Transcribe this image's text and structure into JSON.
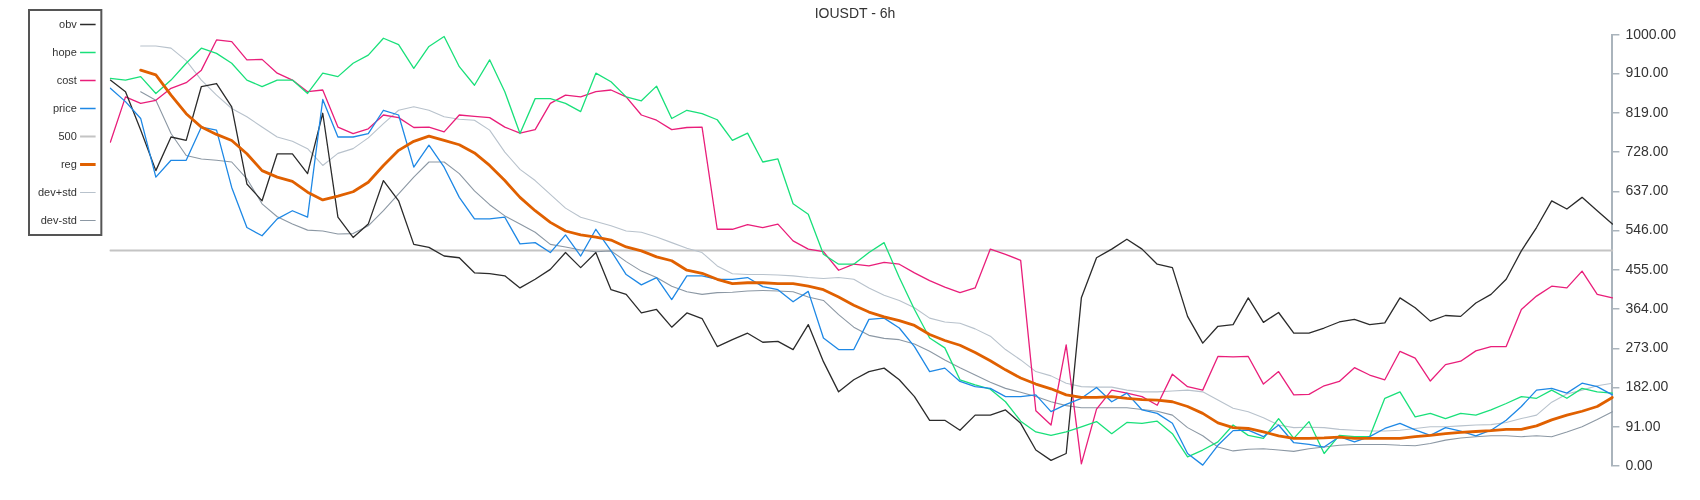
{
  "chart_data": {
    "type": "line",
    "title": "IOUSDT - 6h",
    "categories": [
      null,
      null,
      null,
      null,
      null,
      null,
      null,
      null,
      null,
      null,
      null,
      null,
      null,
      null,
      null,
      null,
      null,
      null,
      null,
      null,
      null,
      null,
      null,
      null,
      null,
      null,
      null,
      null,
      null,
      null,
      null,
      null,
      null,
      null,
      null,
      null,
      null,
      null,
      null,
      null,
      null,
      null,
      null,
      null,
      null,
      null,
      null,
      null,
      null,
      null,
      null,
      null,
      null,
      null,
      null,
      null,
      null,
      null,
      null,
      null,
      null,
      null,
      null,
      null,
      null,
      null,
      null,
      null,
      null,
      null,
      null,
      null,
      null,
      null,
      null,
      null,
      null,
      null,
      null,
      null,
      null,
      null,
      null,
      null,
      null,
      null,
      null,
      null,
      null,
      null,
      null,
      null,
      null,
      null,
      null,
      null,
      null,
      null,
      null,
      null
    ],
    "series": [
      {
        "name": "obv",
        "color": "#2b2b2b",
        "values": [
          895,
          868,
          779,
          685,
          763,
          755,
          880,
          887,
          833,
          654,
          615,
          724,
          724,
          678,
          818,
          577,
          530,
          561,
          662,
          615,
          514,
          507,
          487,
          483,
          448,
          446,
          441,
          413,
          433,
          456,
          495,
          460,
          495,
          409,
          398,
          355,
          363,
          322,
          355,
          342,
          277,
          293,
          308,
          287,
          289,
          270,
          328,
          242,
          172,
          200,
          219,
          227,
          200,
          161,
          106,
          106,
          83,
          118,
          118,
          130,
          99,
          37,
          13,
          29,
          390,
          483,
          503,
          526,
          503,
          468,
          460,
          347,
          285,
          324,
          328,
          390,
          333,
          356,
          308,
          308,
          320,
          334,
          340,
          328,
          332,
          390,
          367,
          336,
          349,
          347,
          378,
          398,
          433,
          499,
          553,
          615,
          596,
          623,
          592,
          561
        ]
      },
      {
        "name": "hope",
        "color": "#19e07a",
        "values": [
          899,
          895,
          903,
          864,
          895,
          934,
          969,
          957,
          934,
          895,
          880,
          895,
          895,
          864,
          911,
          903,
          934,
          953,
          992,
          977,
          922,
          973,
          996,
          926,
          883,
          942,
          868,
          771,
          852,
          852,
          841,
          822,
          911,
          891,
          856,
          847,
          881,
          806,
          825,
          817,
          803,
          755,
          772,
          705,
          712,
          608,
          584,
          491,
          468,
          468,
          495,
          518,
          437,
          363,
          297,
          274,
          200,
          188,
          178,
          149,
          104,
          79,
          71,
          79,
          91,
          103,
          75,
          101,
          99,
          104,
          75,
          21,
          37,
          56,
          95,
          71,
          64,
          110,
          64,
          103,
          29,
          71,
          68,
          68,
          157,
          172,
          114,
          122,
          110,
          122,
          118,
          130,
          145,
          161,
          157,
          176,
          157,
          180,
          172,
          169
        ]
      },
      {
        "name": "cost",
        "color": "#e91e7a",
        "values": [
          751,
          856,
          841,
          848,
          876,
          889,
          918,
          988,
          984,
          942,
          943,
          911,
          895,
          868,
          872,
          786,
          771,
          782,
          814,
          808,
          785,
          786,
          775,
          814,
          811,
          808,
          786,
          772,
          780,
          841,
          860,
          856,
          868,
          872,
          856,
          814,
          802,
          780,
          785,
          786,
          549,
          549,
          560,
          553,
          561,
          522,
          503,
          497,
          454,
          468,
          464,
          472,
          468,
          448,
          430,
          415,
          402,
          413,
          503,
          491,
          477,
          128,
          95,
          281,
          5,
          132,
          176,
          169,
          161,
          141,
          213,
          184,
          176,
          254,
          253,
          254,
          190,
          219,
          165,
          166,
          186,
          196,
          228,
          211,
          200,
          266,
          250,
          197,
          235,
          243,
          267,
          277,
          277,
          363,
          394,
          417,
          413,
          452,
          398,
          390
        ]
      },
      {
        "name": "price",
        "color": "#1e88e5",
        "values": [
          876,
          845,
          806,
          670,
          709,
          709,
          786,
          779,
          646,
          553,
          534,
          573,
          592,
          577,
          850,
          763,
          763,
          771,
          825,
          814,
          693,
          744,
          693,
          623,
          573,
          573,
          577,
          515,
          518,
          495,
          536,
          487,
          549,
          499,
          444,
          420,
          437,
          386,
          441,
          441,
          433,
          433,
          437,
          416,
          409,
          381,
          405,
          297,
          270,
          270,
          340,
          343,
          320,
          277,
          219,
          227,
          196,
          184,
          180,
          161,
          161,
          165,
          126,
          143,
          157,
          182,
          149,
          169,
          130,
          122,
          99,
          29,
          2,
          48,
          82,
          83,
          68,
          95,
          54,
          50,
          44,
          68,
          56,
          68,
          87,
          99,
          84,
          71,
          89,
          81,
          70,
          83,
          106,
          138,
          176,
          180,
          169,
          192,
          184,
          165
        ]
      },
      {
        "name": "500",
        "color": "#c4c4c4",
        "values": [
          500,
          500,
          500,
          500,
          500,
          500,
          500,
          500,
          500,
          500,
          500,
          500,
          500,
          500,
          500,
          500,
          500,
          500,
          500,
          500,
          500,
          500,
          500,
          500,
          500,
          500,
          500,
          500,
          500,
          500,
          500,
          500,
          500,
          500,
          500,
          500,
          500,
          500,
          500,
          500,
          500,
          500,
          500,
          500,
          500,
          500,
          500,
          500,
          500,
          500,
          500,
          500,
          500,
          500,
          500,
          500,
          500,
          500,
          500,
          500,
          500,
          500,
          500,
          500,
          500,
          500,
          500,
          500,
          500,
          500,
          500,
          500,
          500,
          500,
          500,
          500,
          500,
          500,
          500,
          500,
          500,
          500,
          500,
          500,
          500,
          500,
          500,
          500,
          500,
          500,
          500,
          500,
          500,
          500,
          500,
          500,
          500,
          500,
          500,
          500
        ]
      },
      {
        "name": "reg",
        "color": "#e06000",
        "values": [
          null,
          null,
          918,
          907,
          860,
          817,
          786,
          769,
          755,
          724,
          685,
          670,
          660,
          635,
          617,
          626,
          636,
          658,
          697,
          732,
          753,
          765,
          755,
          745,
          726,
          697,
          662,
          623,
          592,
          565,
          545,
          536,
          531,
          524,
          508,
          499,
          485,
          476,
          454,
          447,
          433,
          423,
          425,
          425,
          423,
          423,
          417,
          409,
          392,
          373,
          357,
          346,
          337,
          326,
          305,
          291,
          280,
          263,
          244,
          223,
          204,
          190,
          179,
          165,
          159,
          159,
          161,
          157,
          154,
          153,
          149,
          138,
          122,
          100,
          89,
          87,
          79,
          70,
          64,
          64,
          65,
          67,
          64,
          64,
          64,
          64,
          68,
          71,
          75,
          78,
          80,
          82,
          85,
          85,
          93,
          107,
          118,
          127,
          138,
          159
        ]
      },
      {
        "name": "dev+std",
        "color": "#b8c2cc",
        "values": [
          null,
          null,
          974,
          974,
          969,
          940,
          895,
          860,
          829,
          810,
          786,
          763,
          753,
          736,
          697,
          725,
          736,
          761,
          794,
          825,
          833,
          825,
          810,
          804,
          802,
          779,
          728,
          688,
          662,
          630,
          598,
          577,
          567,
          557,
          545,
          542,
          531,
          518,
          505,
          495,
          464,
          446,
          444,
          444,
          443,
          441,
          437,
          435,
          437,
          433,
          413,
          396,
          384,
          367,
          343,
          334,
          331,
          318,
          301,
          270,
          246,
          219,
          209,
          192,
          184,
          183,
          183,
          176,
          172,
          172,
          174,
          176,
          172,
          153,
          134,
          126,
          112,
          95,
          89,
          90,
          89,
          85,
          83,
          81,
          81,
          83,
          87,
          91,
          91,
          93,
          95,
          96,
          101,
          110,
          118,
          148,
          167,
          176,
          186,
          192
        ]
      },
      {
        "name": "dev-std",
        "color": "#8c98a4",
        "values": [
          null,
          null,
          868,
          848,
          771,
          720,
          712,
          709,
          705,
          666,
          608,
          578,
          561,
          547,
          545,
          538,
          539,
          557,
          592,
          631,
          670,
          705,
          705,
          678,
          638,
          606,
          580,
          561,
          542,
          514,
          508,
          501,
          497,
          499,
          474,
          452,
          437,
          417,
          404,
          398,
          402,
          403,
          406,
          407,
          406,
          404,
          392,
          384,
          351,
          322,
          303,
          296,
          293,
          283,
          266,
          246,
          228,
          211,
          194,
          180,
          171,
          161,
          149,
          140,
          135,
          135,
          135,
          135,
          131,
          127,
          118,
          89,
          70,
          44,
          35,
          39,
          40,
          37,
          34,
          40,
          44,
          48,
          50,
          50,
          50,
          48,
          47,
          52,
          60,
          65,
          68,
          70,
          70,
          68,
          70,
          68,
          79,
          91,
          108,
          126
        ]
      }
    ],
    "ylim": [
      0,
      1000
    ],
    "yticks": [
      {
        "value": 0,
        "label": "0.00"
      },
      {
        "value": 91,
        "label": "91.00"
      },
      {
        "value": 182,
        "label": "182.00"
      },
      {
        "value": 273,
        "label": "273.00"
      },
      {
        "value": 364,
        "label": "364.00"
      },
      {
        "value": 455,
        "label": "455.00"
      },
      {
        "value": 546,
        "label": "546.00"
      },
      {
        "value": 637,
        "label": "637.00"
      },
      {
        "value": 728,
        "label": "728.00"
      },
      {
        "value": 819,
        "label": "819.00"
      },
      {
        "value": 910,
        "label": "910.00"
      },
      {
        "value": 1000,
        "label": "1000.00"
      }
    ],
    "grid": false,
    "legend": "top left",
    "tick_labels": "y",
    "marker": "none",
    "line_style": "solid"
  }
}
